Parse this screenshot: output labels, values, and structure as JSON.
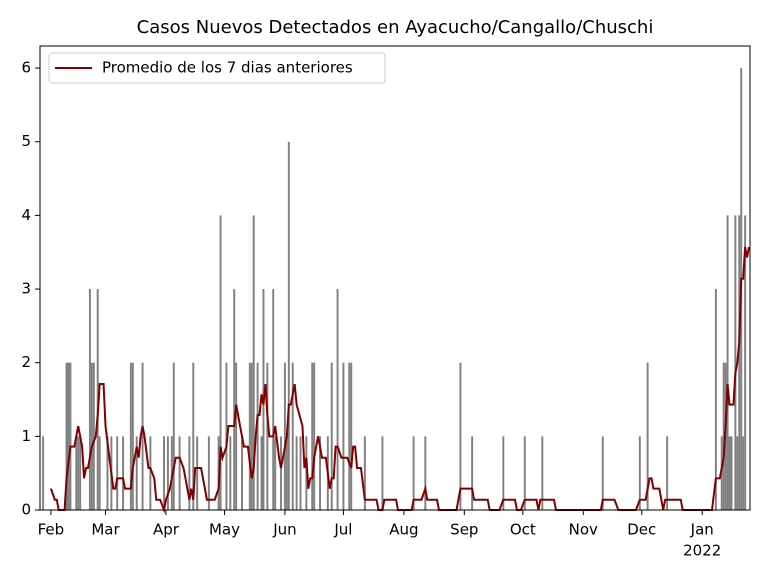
{
  "chart_data": {
    "type": "combo",
    "title": "Casos Nuevos Detectados en Ayacucho/Cangallo/Chuschi",
    "xlim": [
      -5.6,
      358.5
    ],
    "xticks": [
      {
        "value": 0,
        "label": "Feb"
      },
      {
        "value": 28,
        "label": "Mar"
      },
      {
        "value": 59,
        "label": "Apr"
      },
      {
        "value": 89,
        "label": "May"
      },
      {
        "value": 120,
        "label": "Jun"
      },
      {
        "value": 150,
        "label": "Jul"
      },
      {
        "value": 181,
        "label": "Aug"
      },
      {
        "value": 212,
        "label": "Sep"
      },
      {
        "value": 242,
        "label": "Oct"
      },
      {
        "value": 273,
        "label": "Nov"
      },
      {
        "value": 303,
        "label": "Dec"
      },
      {
        "value": 334,
        "label": "Jan"
      }
    ],
    "x_sublabel": "2022",
    "ylim": [
      0,
      6.3
    ],
    "yticks": [
      0,
      1,
      2,
      3,
      4,
      5,
      6
    ],
    "legend": "upper left",
    "series": [
      {
        "type": "bar",
        "color": "#808080",
        "x": [
          -4,
          8,
          9,
          10,
          13,
          14,
          15,
          20,
          21,
          22,
          24,
          25,
          29,
          31,
          34,
          37,
          41,
          42,
          44,
          47,
          51,
          58,
          60,
          62,
          63,
          66,
          71,
          73,
          75,
          81,
          86,
          87,
          90,
          92,
          94,
          95,
          98,
          102,
          103,
          104,
          106,
          108,
          109,
          111,
          114,
          115,
          118,
          120,
          121,
          122,
          124,
          126,
          128,
          131,
          134,
          135,
          138,
          142,
          144,
          147,
          150,
          153,
          154,
          161,
          170,
          186,
          192,
          210,
          216,
          232,
          243,
          252,
          283,
          302,
          306,
          316,
          341,
          344,
          345,
          346,
          347,
          348,
          349,
          351,
          352,
          353,
          354,
          355,
          356
        ],
        "values": [
          1,
          2,
          2,
          2,
          1,
          1,
          1,
          3,
          2,
          2,
          3,
          1,
          1,
          1,
          1,
          1,
          2,
          2,
          1,
          2,
          1,
          1,
          1,
          1,
          2,
          1,
          1,
          2,
          1,
          1,
          1,
          4,
          2,
          1,
          3,
          2,
          1,
          2,
          2,
          4,
          2,
          1,
          3,
          2,
          3,
          1,
          1,
          2,
          1,
          5,
          2,
          1,
          1,
          1,
          2,
          2,
          1,
          1,
          2,
          3,
          2,
          2,
          2,
          1,
          1,
          1,
          1,
          2,
          1,
          1,
          1,
          1,
          1,
          1,
          2,
          1,
          3,
          1,
          2,
          2,
          4,
          1,
          1,
          4,
          1,
          4,
          6,
          1,
          4
        ]
      },
      {
        "type": "line",
        "name": "Promedio de los 7 dias anteriores",
        "color": "#800000",
        "x": [
          0,
          2,
          3,
          4,
          7,
          8,
          10,
          12,
          14,
          16,
          17,
          18,
          19,
          21,
          23,
          24,
          25,
          27,
          28,
          30,
          32,
          33,
          34,
          37,
          38,
          41,
          42,
          44,
          45,
          46,
          47,
          48,
          50,
          51,
          53,
          54,
          56,
          58,
          59,
          61,
          62,
          64,
          66,
          68,
          69,
          71,
          72,
          73,
          74,
          77,
          78,
          80,
          84,
          86,
          87,
          88,
          90,
          91,
          94,
          95,
          97,
          99,
          101,
          103,
          104,
          105,
          106,
          107,
          108,
          109,
          110,
          111,
          112,
          114,
          115,
          117,
          118,
          119,
          121,
          122,
          123,
          125,
          126,
          129,
          130,
          131,
          132,
          133,
          134,
          135,
          137,
          138,
          139,
          141,
          143,
          144,
          145,
          146,
          147,
          149,
          152,
          154,
          155,
          156,
          157,
          159,
          161,
          167,
          168,
          170,
          171,
          177,
          178,
          185,
          186,
          190,
          192,
          193,
          198,
          199,
          208,
          210,
          216,
          217,
          224,
          225,
          230,
          232,
          238,
          239,
          241,
          243,
          249,
          250,
          251,
          258,
          259,
          282,
          283,
          289,
          291,
          300,
          302,
          305,
          307,
          308,
          309,
          312,
          314,
          315,
          323,
          324,
          339,
          341,
          343,
          345,
          346,
          347,
          348,
          350,
          351,
          352,
          353,
          354,
          355,
          356,
          357,
          358
        ],
        "values": [
          0.29,
          0.14,
          0.14,
          0,
          0,
          0.43,
          0.86,
          0.86,
          1.14,
          0.86,
          0.43,
          0.57,
          0.57,
          0.86,
          1.0,
          1.29,
          1.71,
          1.71,
          1.14,
          0.71,
          0.29,
          0.29,
          0.43,
          0.43,
          0.29,
          0.29,
          0.57,
          0.86,
          0.71,
          1.0,
          1.14,
          1.0,
          0.57,
          0.57,
          0.43,
          0.14,
          0.14,
          0,
          0.14,
          0.29,
          0.43,
          0.71,
          0.71,
          0.57,
          0.43,
          0.14,
          0.29,
          0.14,
          0.57,
          0.57,
          0.43,
          0.14,
          0.14,
          0.29,
          0.86,
          0.71,
          0.86,
          1.14,
          1.14,
          1.43,
          1.14,
          0.86,
          0.86,
          0.43,
          0.57,
          1.0,
          1.29,
          1.29,
          1.57,
          1.43,
          1.71,
          1.29,
          1.0,
          1.0,
          1.14,
          0.71,
          0.57,
          0.71,
          1.0,
          1.43,
          1.43,
          1.71,
          1.43,
          1.14,
          0.57,
          0.71,
          0.29,
          0.43,
          0.43,
          0.71,
          1.0,
          0.86,
          0.71,
          0.71,
          0.29,
          0.43,
          0.43,
          0.86,
          0.86,
          0.71,
          0.71,
          0.57,
          0.86,
          0.86,
          0.57,
          0.57,
          0.14,
          0.14,
          0,
          0,
          0.14,
          0.14,
          0,
          0,
          0.14,
          0.14,
          0.29,
          0.14,
          0.14,
          0,
          0,
          0.29,
          0.29,
          0.14,
          0.14,
          0,
          0,
          0.14,
          0.14,
          0,
          0,
          0.14,
          0.14,
          0,
          0.14,
          0.14,
          0,
          0,
          0.14,
          0.14,
          0,
          0,
          0.14,
          0.14,
          0.43,
          0.43,
          0.29,
          0.29,
          0,
          0.14,
          0.14,
          0,
          0,
          0.43,
          0.43,
          0.71,
          1.14,
          1.71,
          1.43,
          1.43,
          1.86,
          2.0,
          2.29,
          3.14,
          3.14,
          3.57,
          3.43,
          3.57
        ]
      }
    ]
  }
}
